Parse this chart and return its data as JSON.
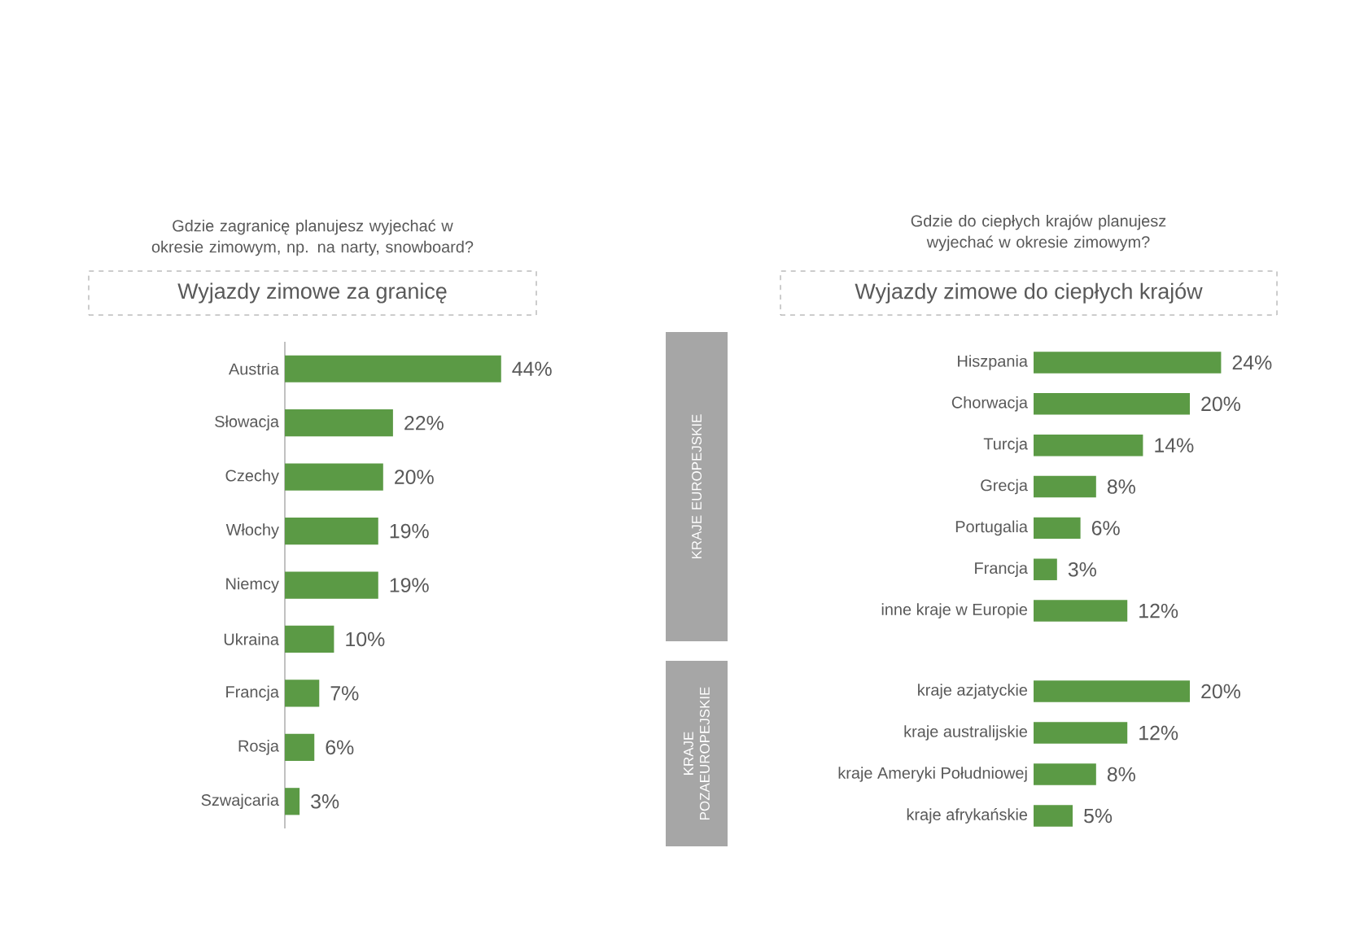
{
  "chart_data": [
    {
      "type": "bar",
      "orientation": "horizontal",
      "title": "Wyjazdy zimowe za granicę",
      "subtitle": "Gdzie zagranicę planujesz wyjechać w okresie zimowym, np. na narty, snowboard?",
      "categories": [
        "Austria",
        "Słowacja",
        "Czechy",
        "Włochy",
        "Niemcy",
        "Ukraina",
        "Francja",
        "Rosja",
        "Szwajcaria"
      ],
      "values": [
        44,
        22,
        20,
        19,
        19,
        10,
        7,
        6,
        3
      ],
      "value_labels": [
        "44%",
        "22%",
        "20%",
        "19%",
        "19%",
        "10%",
        "7%",
        "6%",
        "3%"
      ],
      "color": "#5b9a45"
    },
    {
      "type": "bar",
      "orientation": "horizontal",
      "title": "Wyjazdy zimowe do ciepłych krajów",
      "subtitle": "Gdzie do ciepłych krajów planujesz wyjechać w okresie zimowym?",
      "ylabel": "KRAJE EUROPEJSKIE",
      "categories": [
        "Hiszpania",
        "Chorwacja",
        "Turcja",
        "Grecja",
        "Portugalia",
        "Francja",
        "inne kraje w Europie"
      ],
      "values": [
        24,
        20,
        14,
        8,
        6,
        3,
        12
      ],
      "value_labels": [
        "24%",
        "20%",
        "14%",
        "8%",
        "6%",
        "3%",
        "12%"
      ],
      "color": "#5b9a45"
    },
    {
      "type": "bar",
      "orientation": "horizontal",
      "ylabel": "KRAJE POZAEUROPEJSKIE",
      "categories": [
        "kraje azjatyckie",
        "kraje australijskie",
        "kraje Ameryki Południowej",
        "kraje afrykańskie"
      ],
      "values": [
        20,
        12,
        8,
        5
      ],
      "value_labels": [
        "20%",
        "12%",
        "8%",
        "5%"
      ],
      "color": "#5b9a45"
    }
  ]
}
